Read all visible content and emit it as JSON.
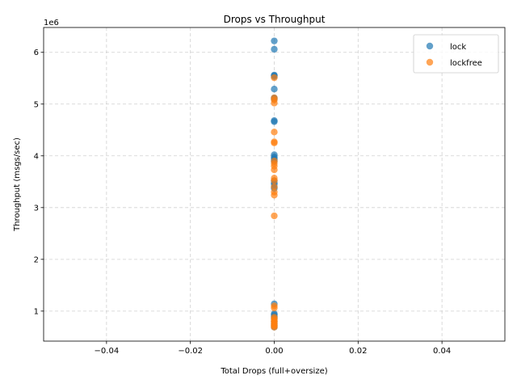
{
  "chart_data": {
    "type": "scatter",
    "title": "Drops vs Throughput",
    "xlabel": "Total Drops (full+oversize)",
    "ylabel": "Throughput (msgs/sec)",
    "y_offset_label": "1e6",
    "xlim": [
      -0.055,
      0.055
    ],
    "ylim": [
      0.42,
      6.48
    ],
    "y_unit_multiplier": 1000000,
    "x_ticks": [
      -0.04,
      -0.02,
      0.0,
      0.02,
      0.04
    ],
    "x_tick_labels": [
      "−0.04",
      "−0.02",
      "0.00",
      "0.02",
      "0.04"
    ],
    "y_ticks": [
      1,
      2,
      3,
      4,
      5,
      6
    ],
    "y_tick_labels": [
      "1",
      "2",
      "3",
      "4",
      "5",
      "6"
    ],
    "grid": true,
    "legend_position": "top-right",
    "series": [
      {
        "name": "lock",
        "color": "#1f77b4",
        "x": [
          0,
          0,
          0,
          0,
          0,
          0,
          0,
          0,
          0,
          0,
          0,
          0,
          0,
          0,
          0,
          0,
          0,
          0,
          0,
          0,
          0,
          0,
          0,
          0,
          0,
          0,
          0,
          0,
          0,
          0
        ],
        "y": [
          6.22,
          6.06,
          5.56,
          5.55,
          5.53,
          5.29,
          5.12,
          5.1,
          4.68,
          4.66,
          4.02,
          3.98,
          3.95,
          3.92,
          3.89,
          3.52,
          3.48,
          3.45,
          3.4,
          3.37,
          1.14,
          0.95,
          0.93,
          0.9,
          0.88,
          0.85,
          0.8,
          0.76,
          0.72,
          0.69
        ]
      },
      {
        "name": "lockfree",
        "color": "#ff7f0e",
        "x": [
          0,
          0,
          0,
          0,
          0,
          0,
          0,
          0,
          0,
          0,
          0,
          0,
          0,
          0,
          0,
          0,
          0,
          0,
          0,
          0,
          0,
          0,
          0,
          0,
          0,
          0,
          0,
          0
        ],
        "y": [
          5.51,
          5.12,
          5.08,
          5.02,
          4.46,
          4.27,
          4.25,
          3.9,
          3.85,
          3.8,
          3.73,
          3.57,
          3.52,
          3.4,
          3.3,
          3.24,
          2.84,
          1.1,
          1.06,
          0.88,
          0.85,
          0.82,
          0.8,
          0.78,
          0.75,
          0.73,
          0.71,
          0.69
        ]
      }
    ]
  }
}
